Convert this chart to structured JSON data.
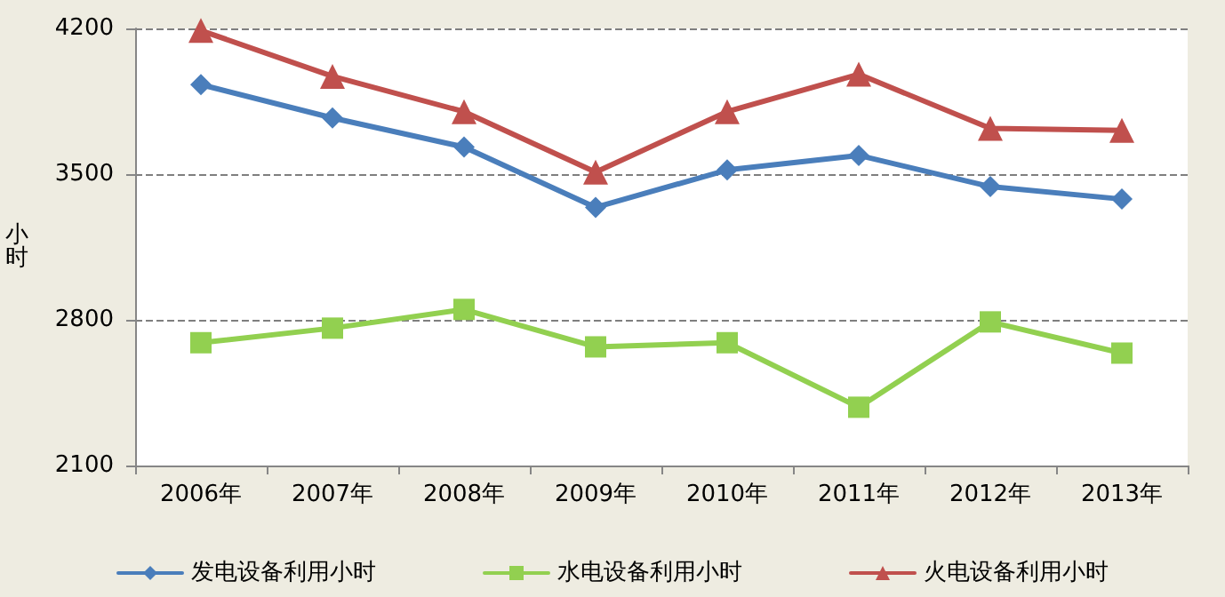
{
  "chart_data": {
    "type": "line",
    "ylabel": "小时",
    "categories": [
      "2006年",
      "2007年",
      "2008年",
      "2009年",
      "2010年",
      "2011年",
      "2012年",
      "2013年"
    ],
    "series": [
      {
        "name": "发电设备利用小时",
        "color": "#4a7ebb",
        "marker": "diamond",
        "values": [
          3930,
          3770,
          3630,
          3340,
          3520,
          3590,
          3440,
          3380
        ]
      },
      {
        "name": "水电设备利用小时",
        "color": "#92d050",
        "marker": "square",
        "values": [
          2690,
          2760,
          2850,
          2670,
          2690,
          2380,
          2790,
          2640
        ]
      },
      {
        "name": "火电设备利用小时",
        "color": "#c0504d",
        "marker": "triangle",
        "values": [
          4190,
          3970,
          3800,
          3510,
          3800,
          3980,
          3720,
          3710
        ]
      }
    ],
    "ylim": [
      2100,
      4200
    ],
    "yticks": [
      2100,
      2800,
      3500,
      4200
    ],
    "grid": "y",
    "legend": "bottom",
    "line_style": "solid"
  }
}
